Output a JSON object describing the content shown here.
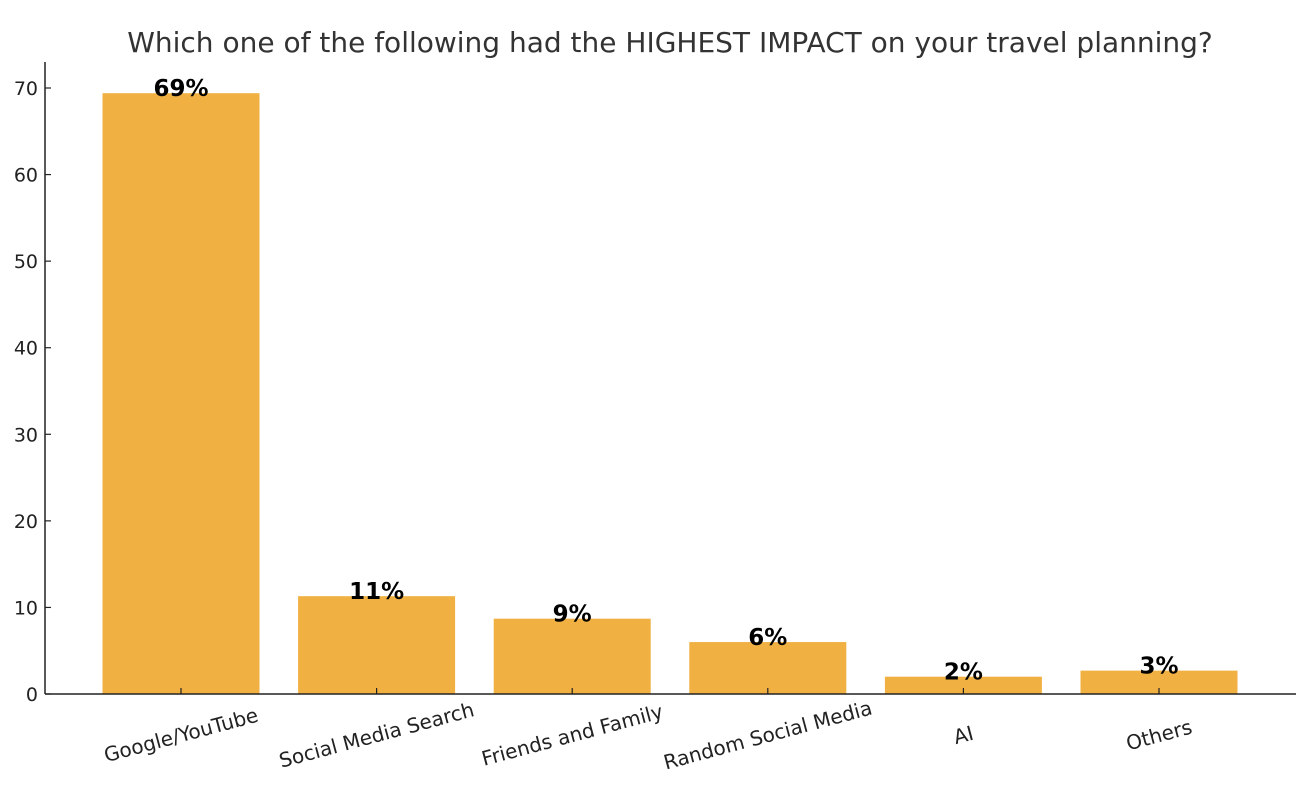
{
  "chart_data": {
    "type": "bar",
    "title": "Which one of the following had the HIGHEST IMPACT on your travel planning?",
    "xlabel": "",
    "ylabel": "",
    "categories": [
      "Google/YouTube",
      "Social Media Search",
      "Friends and Family",
      "Random Social Media",
      "AI",
      "Others"
    ],
    "values": [
      69.4,
      11.3,
      8.7,
      6.0,
      2.0,
      2.7
    ],
    "data_labels": [
      "69%",
      "11%",
      "9%",
      "6%",
      "2%",
      "3%"
    ],
    "ylim": [
      0,
      73
    ],
    "yticks": [
      "0",
      "10",
      "20",
      "30",
      "40",
      "50",
      "60",
      "70"
    ],
    "grid": false,
    "bar_color": "#F0B142"
  }
}
